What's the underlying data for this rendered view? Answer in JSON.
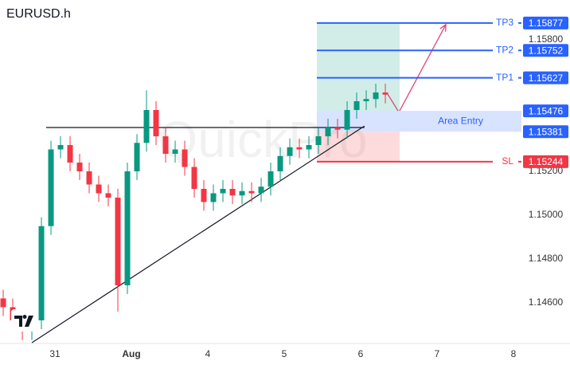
{
  "chart_data": {
    "type": "candlestick",
    "title": "EURUSD.h",
    "watermark": "QuickPro",
    "up_color": "#089981",
    "down_color": "#f23645",
    "xlim": [
      -0.719,
      6.104
    ],
    "ylim": [
      1.14418,
      1.15982
    ],
    "xticks": [
      {
        "value": 0,
        "label": "31"
      },
      {
        "value": 1,
        "label": "Aug"
      },
      {
        "value": 2,
        "label": "4"
      },
      {
        "value": 3,
        "label": "5"
      },
      {
        "value": 4,
        "label": "6"
      },
      {
        "value": 5,
        "label": "7"
      },
      {
        "value": 6,
        "label": "8"
      }
    ],
    "yticks": [
      {
        "value": 1.158,
        "label": "1.15800"
      },
      {
        "value": 1.152,
        "label": "1.15200"
      },
      {
        "value": 1.15,
        "label": "1.15000"
      },
      {
        "value": 1.148,
        "label": "1.14800"
      },
      {
        "value": 1.146,
        "label": "1.14600"
      }
    ],
    "x": [
      -0.677,
      -0.552,
      -0.427,
      -0.302,
      -0.177,
      -0.052,
      0.073,
      0.198,
      0.323,
      0.448,
      0.573,
      0.698,
      0.823,
      0.948,
      1.073,
      1.198,
      1.323,
      1.448,
      1.573,
      1.698,
      1.823,
      1.948,
      2.073,
      2.198,
      2.323,
      2.448,
      2.573,
      2.698,
      2.823,
      2.948,
      3.073,
      3.198,
      3.323,
      3.448,
      3.573,
      3.698,
      3.823,
      3.948,
      4.073,
      4.198,
      4.323
    ],
    "open": [
      1.1462,
      1.1458,
      1.1452,
      1.1447,
      1.1452,
      1.1495,
      1.153,
      1.1532,
      1.1524,
      1.152,
      1.1514,
      1.151,
      1.1508,
      1.1468,
      1.152,
      1.1533,
      1.1548,
      1.1536,
      1.1528,
      1.153,
      1.1522,
      1.1512,
      1.1506,
      1.151,
      1.1512,
      1.1509,
      1.1511,
      1.151,
      1.1513,
      1.152,
      1.1527,
      1.1531,
      1.153,
      1.1532,
      1.1536,
      1.154,
      1.1539,
      1.1548,
      1.1552,
      1.1553,
      1.1556
    ],
    "high": [
      1.1466,
      1.1462,
      1.1456,
      1.1456,
      1.1499,
      1.1534,
      1.1536,
      1.1536,
      1.1528,
      1.1524,
      1.1518,
      1.1514,
      1.1512,
      1.1524,
      1.1537,
      1.1557,
      1.1552,
      1.154,
      1.1534,
      1.1534,
      1.1526,
      1.1516,
      1.1514,
      1.1516,
      1.1516,
      1.1515,
      1.1515,
      1.1517,
      1.1524,
      1.1531,
      1.1535,
      1.1535,
      1.1536,
      1.154,
      1.1544,
      1.1544,
      1.1552,
      1.1556,
      1.1557,
      1.156,
      1.156
    ],
    "low": [
      1.1454,
      1.1448,
      1.1443,
      1.1443,
      1.1448,
      1.1491,
      1.1526,
      1.152,
      1.1516,
      1.151,
      1.1506,
      1.1504,
      1.1456,
      1.1464,
      1.1516,
      1.1529,
      1.1532,
      1.1524,
      1.1524,
      1.1518,
      1.1508,
      1.1502,
      1.1502,
      1.1506,
      1.1505,
      1.1505,
      1.1506,
      1.1506,
      1.1509,
      1.1516,
      1.1523,
      1.1526,
      1.1526,
      1.1528,
      1.1532,
      1.1535,
      1.1535,
      1.1544,
      1.1548,
      1.1549,
      1.1551
    ],
    "close": [
      1.1458,
      1.1452,
      1.1447,
      1.1452,
      1.1495,
      1.153,
      1.1532,
      1.1524,
      1.152,
      1.1514,
      1.151,
      1.1508,
      1.1468,
      1.152,
      1.1533,
      1.1548,
      1.1536,
      1.1528,
      1.153,
      1.1522,
      1.1512,
      1.1506,
      1.151,
      1.1512,
      1.1509,
      1.1511,
      1.151,
      1.1513,
      1.152,
      1.1527,
      1.1531,
      1.153,
      1.1532,
      1.1536,
      1.154,
      1.1539,
      1.1548,
      1.1552,
      1.1553,
      1.1556,
      1.1555
    ],
    "levels": [
      {
        "name": "TP3",
        "value": 1.15877,
        "color": "#2962ff"
      },
      {
        "name": "TP2",
        "value": 1.15752,
        "color": "#2962ff"
      },
      {
        "name": "TP1",
        "value": 1.15627,
        "color": "#2962ff"
      },
      {
        "name": "SL",
        "value": 1.15244,
        "color": "#f23645"
      }
    ],
    "entry_zone": {
      "label": "Area Entry",
      "top": 1.15476,
      "bottom": 1.15381,
      "color": "#2962ff"
    },
    "position": {
      "x_start": 3.427,
      "x_end": 4.51
    },
    "trendlines": [
      {
        "x": [
          -0.115,
          4.05
        ],
        "y": [
          1.154,
          1.154
        ]
      },
      {
        "x": [
          -0.302,
          4.05
        ],
        "y": [
          1.14418,
          1.15407
        ]
      }
    ],
    "arrows": [
      {
        "x": [
          4.34,
          4.49
        ],
        "y": [
          1.1556,
          1.15476
        ]
      },
      {
        "x": [
          4.51,
          5.115
        ],
        "y": [
          1.15476,
          1.1587
        ]
      }
    ]
  }
}
